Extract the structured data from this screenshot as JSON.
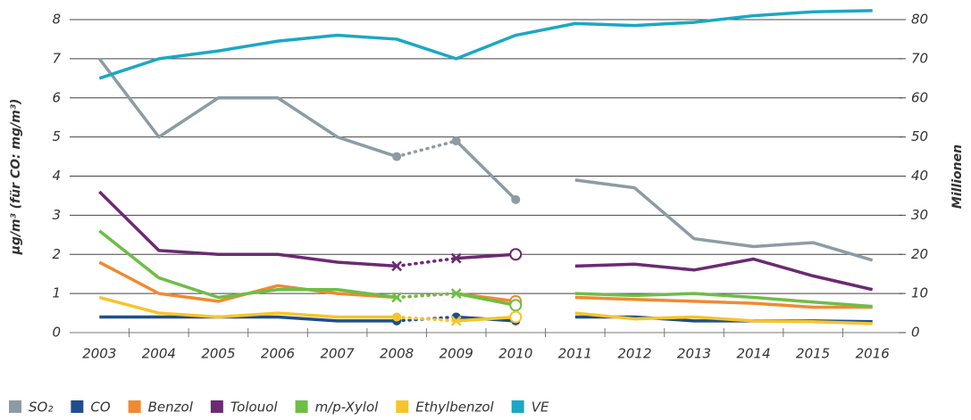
{
  "chart_data": {
    "type": "line",
    "categories": [
      "2003",
      "2004",
      "2005",
      "2006",
      "2007",
      "2008",
      "2009",
      "2010",
      "2011",
      "2012",
      "2013",
      "2014",
      "2015",
      "2016"
    ],
    "y_label": "µg/m³ (für CO: mg/m³)",
    "y2_label": "Millionen",
    "ylim": [
      0,
      8
    ],
    "yticks": [
      0,
      1,
      2,
      3,
      4,
      5,
      6,
      7,
      8
    ],
    "y2lim": [
      0,
      80
    ],
    "y2ticks": [
      0,
      10,
      20,
      30,
      40,
      50,
      60,
      70,
      80
    ],
    "grid": true,
    "legend": "bottom",
    "series": [
      {
        "name": "SO₂",
        "color": "#8c9ba4",
        "values": [
          7,
          5,
          6,
          6,
          5,
          4.5,
          4.9,
          3.4,
          3.9,
          3.7,
          2.4,
          2.2,
          2.3,
          1.85
        ],
        "dashed_between": [
          "2008",
          "2009"
        ],
        "gap_between": [
          "2010",
          "2011"
        ],
        "markers": {
          "2008": "circle",
          "2009": "circle",
          "2010": "circle"
        }
      },
      {
        "name": "CO",
        "color": "#1f4e8c",
        "values": [
          0.4,
          0.4,
          0.4,
          0.4,
          0.3,
          0.3,
          0.4,
          0.3,
          0.4,
          0.4,
          0.3,
          0.3,
          0.3,
          0.28
        ],
        "dashed_between": [
          "2008",
          "2009"
        ],
        "gap_between": [
          "2010",
          "2011"
        ],
        "markers": {
          "2008": "circle",
          "2009": "circle",
          "2010": "circle"
        }
      },
      {
        "name": "Benzol",
        "color": "#f08a30",
        "values": [
          1.8,
          1.0,
          0.8,
          1.2,
          1.0,
          0.9,
          1.0,
          0.8,
          0.9,
          0.85,
          0.8,
          0.75,
          0.65,
          0.65
        ],
        "dashed_between": [
          "2008",
          "2009"
        ],
        "gap_between": [
          "2010",
          "2011"
        ],
        "markers": {
          "2010": "open-circle"
        }
      },
      {
        "name": "Tolouol",
        "color": "#6b2a72",
        "values": [
          3.6,
          2.1,
          2.0,
          2.0,
          1.8,
          1.7,
          1.9,
          2.0,
          1.7,
          1.75,
          1.6,
          1.88,
          1.45,
          1.1
        ],
        "dashed_between": [
          "2008",
          "2009"
        ],
        "gap_between": [
          "2010",
          "2011"
        ],
        "markers": {
          "2008": "x",
          "2009": "x",
          "2010": "open-circle"
        }
      },
      {
        "name": "m/p-Xylol",
        "color": "#6dbe45",
        "values": [
          2.6,
          1.4,
          0.9,
          1.1,
          1.1,
          0.9,
          1.0,
          0.7,
          1.0,
          0.95,
          1.0,
          0.9,
          0.78,
          0.67
        ],
        "dashed_between": [
          "2008",
          "2009"
        ],
        "gap_between": [
          "2010",
          "2011"
        ],
        "markers": {
          "2008": "x",
          "2009": "x",
          "2010": "open-circle"
        }
      },
      {
        "name": "Ethylbenzol",
        "color": "#f7c42b",
        "values": [
          0.9,
          0.5,
          0.4,
          0.5,
          0.4,
          0.4,
          0.3,
          0.4,
          0.5,
          0.35,
          0.4,
          0.3,
          0.28,
          0.23
        ],
        "dashed_between": [
          "2008",
          "2009"
        ],
        "gap_between": [
          "2010",
          "2011"
        ],
        "markers": {
          "2008": "circle",
          "2009": "x",
          "2010": "open-circle"
        }
      },
      {
        "name": "VE",
        "color": "#1aa8c4",
        "axis": "y2",
        "values": [
          65,
          70,
          72,
          74.5,
          76,
          75,
          70,
          76,
          79,
          78.5,
          79.3,
          81,
          82,
          82.3
        ]
      }
    ]
  }
}
